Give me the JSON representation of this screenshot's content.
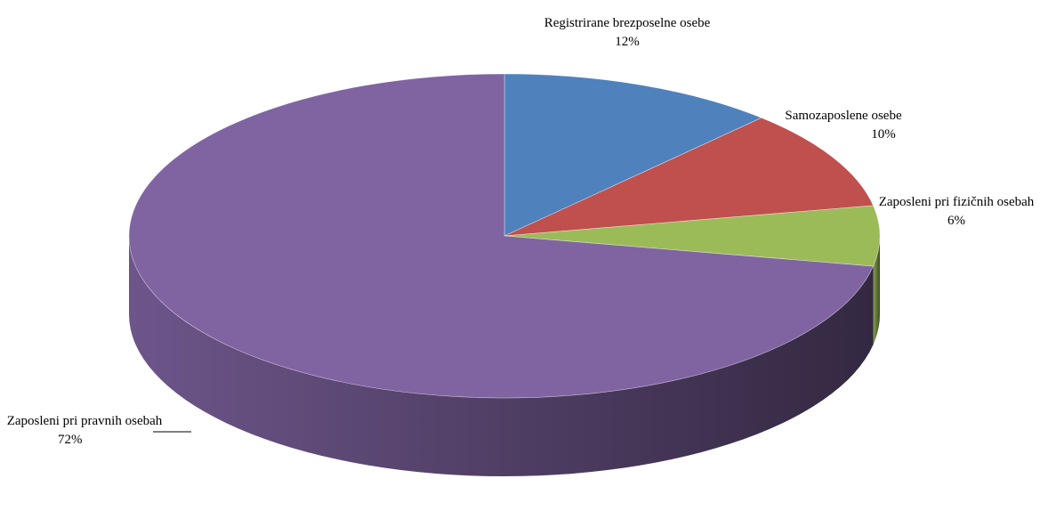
{
  "chart_data": {
    "type": "pie3d",
    "categories": [
      "Registrirane brezposelne osebe",
      "Samozaposlene osebe",
      "Zaposleni pri fizičnih osebah",
      "Zaposleni pri pravnih osebah"
    ],
    "values": [
      12,
      10,
      6,
      72
    ],
    "value_labels": [
      "12%",
      "10%",
      "6%",
      "72%"
    ],
    "colors": [
      "#4f81bd",
      "#c0504d",
      "#9bbb59",
      "#8064a2"
    ]
  }
}
